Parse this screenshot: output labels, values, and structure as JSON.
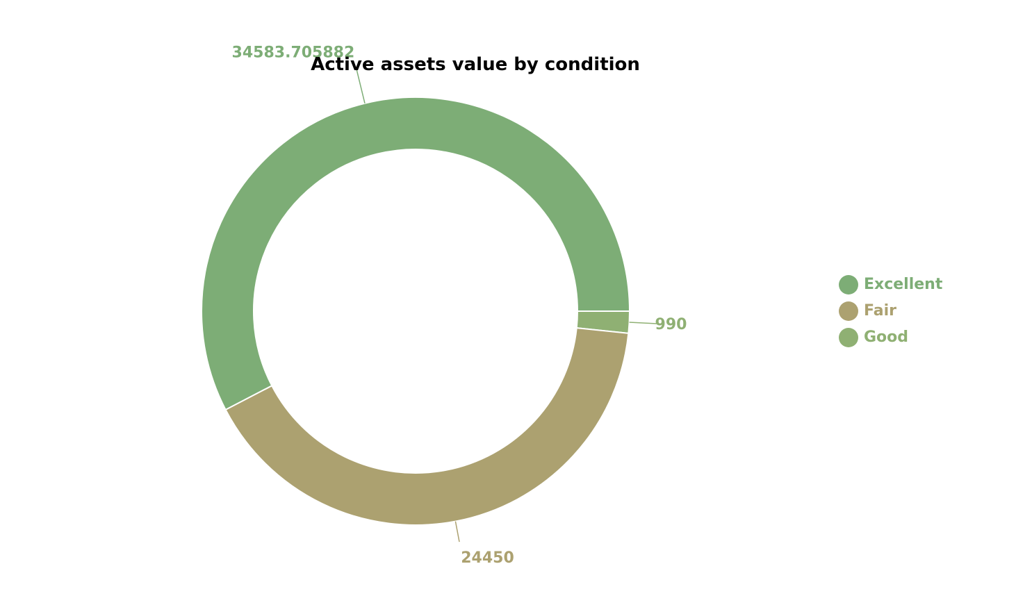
{
  "chart_data": {
    "type": "pie",
    "variant": "donut",
    "title": "Active assets value by condition",
    "legend_position": "right",
    "categories": [
      "Excellent",
      "Fair",
      "Good"
    ],
    "values": [
      34583.705882,
      24450,
      990
    ],
    "value_labels": [
      "34583.705882",
      "24450",
      "990"
    ],
    "colors": [
      "#7dad76",
      "#aca170",
      "#8fb073"
    ]
  }
}
